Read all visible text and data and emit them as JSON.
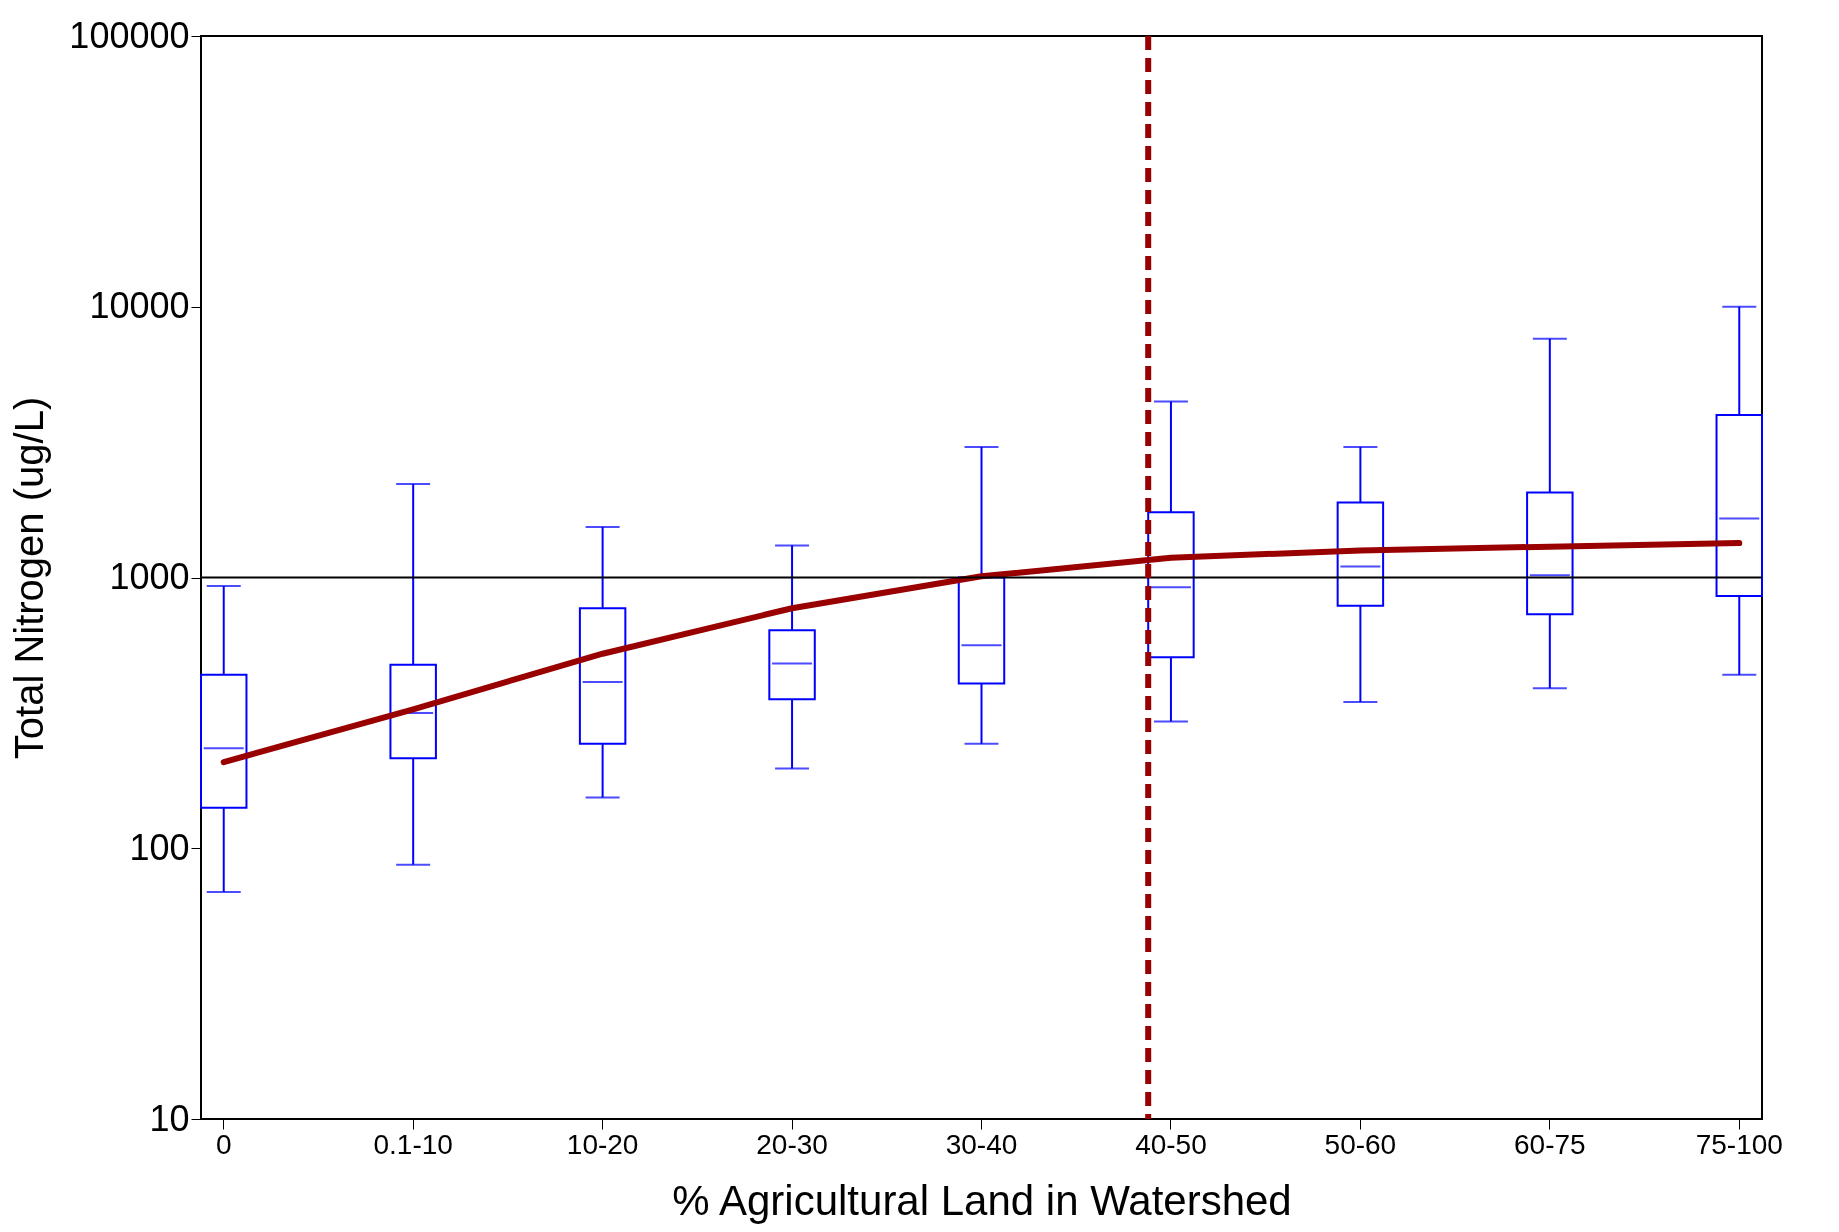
{
  "chart_data": {
    "type": "box",
    "xlabel": "% Agricultural Land in Watershed",
    "ylabel": "Total Nitrogen (ug/L)",
    "categories": [
      "0",
      "0.1-10",
      "10-20",
      "20-30",
      "30-40",
      "40-50",
      "50-60",
      "60-75",
      "75-100"
    ],
    "color": "#0000ff",
    "boxes": [
      {
        "low": 69,
        "q1": 141,
        "median": 234,
        "q3": 437,
        "high": 930
      },
      {
        "low": 87,
        "q1": 215,
        "median": 316,
        "q3": 476,
        "high": 2215
      },
      {
        "low": 154,
        "q1": 243,
        "median": 411,
        "q3": 770,
        "high": 1536
      },
      {
        "low": 197,
        "q1": 355,
        "median": 481,
        "q3": 638,
        "high": 1313
      },
      {
        "low": 243,
        "q1": 406,
        "median": 562,
        "q3": 1000,
        "high": 3034
      },
      {
        "low": 294,
        "q1": 507,
        "median": 920,
        "q3": 1741,
        "high": 4467
      },
      {
        "low": 347,
        "q1": 786,
        "median": 1099,
        "q3": 1893,
        "high": 3034
      },
      {
        "low": 390,
        "q1": 731,
        "median": 1020,
        "q3": 2060,
        "high": 7620
      },
      {
        "low": 437,
        "q1": 855,
        "median": 1652,
        "q3": 3981,
        "high": 10000
      }
    ],
    "series": [
      {
        "type": "line",
        "color": "#990000",
        "values": [
          208,
          326,
          523,
          770,
          1010,
          1183,
          1259,
          1300,
          1340
        ]
      }
    ],
    "ref_lines": [
      {
        "axis": "y",
        "value": 1000,
        "color": "#000000",
        "line_style": "solid"
      },
      {
        "axis": "x",
        "value": "40-50",
        "color": "#990000",
        "line_style": "dashed"
      }
    ],
    "log": true,
    "ylim": [
      10,
      100000
    ],
    "yticks": [
      10,
      100,
      1000,
      10000,
      100000
    ],
    "grid": false
  }
}
